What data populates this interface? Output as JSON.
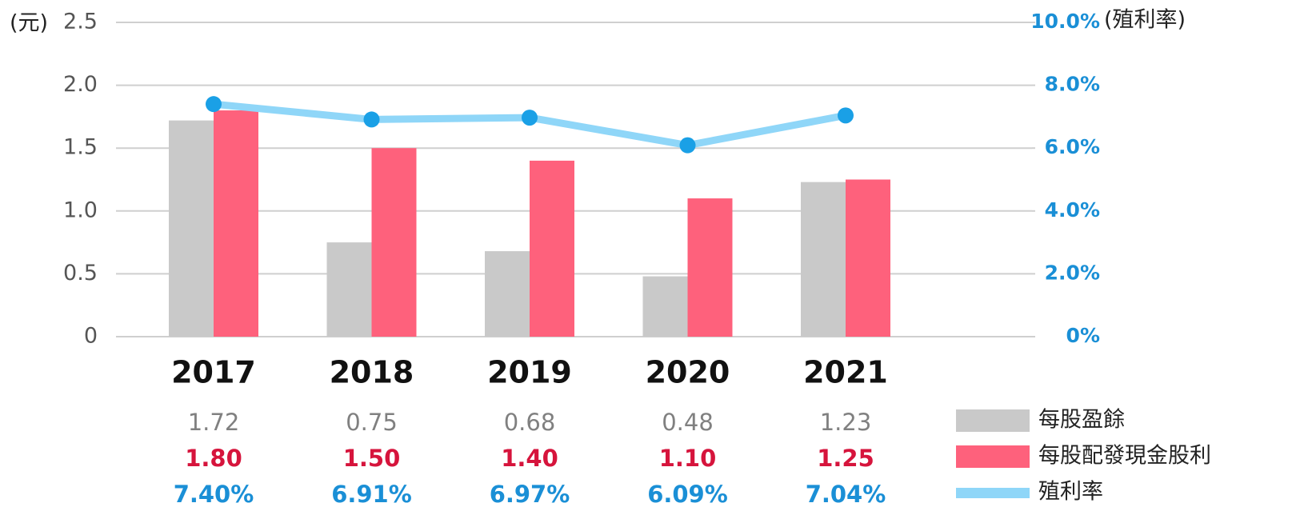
{
  "chart_data": {
    "type": "bar_line",
    "y_label": "(元)",
    "y2_label": "(殖利率)",
    "categories": [
      "2017",
      "2018",
      "2019",
      "2020",
      "2021"
    ],
    "series": [
      {
        "name": "每股盈餘",
        "color": "#c9c9c9",
        "label_color": "#808080",
        "values": [
          1.72,
          0.75,
          0.68,
          0.48,
          1.23
        ],
        "value_labels": [
          "1.72",
          "0.75",
          "0.68",
          "0.48",
          "1.23"
        ]
      },
      {
        "name": "每股配發現金股利",
        "color": "#fe617c",
        "label_color": "#d6143c",
        "values": [
          1.8,
          1.5,
          1.4,
          1.1,
          1.25
        ],
        "value_labels": [
          "1.80",
          "1.50",
          "1.40",
          "1.10",
          "1.25"
        ]
      },
      {
        "name": "殖利率",
        "type": "line",
        "axis": "y2",
        "color": "#8fd6f8",
        "marker_color": "#1aa0e6",
        "label_color": "#1a8fd6",
        "values": [
          7.4,
          6.91,
          6.97,
          6.09,
          7.04
        ],
        "value_labels": [
          "7.40%",
          "6.91%",
          "6.97%",
          "6.09%",
          "7.04%"
        ]
      }
    ],
    "ylim": [
      0,
      2.5
    ],
    "yticks": [
      0,
      0.5,
      {
        "value": 1,
        "label": "1.0"
      },
      1.5,
      {
        "value": 2,
        "label": "2.0"
      },
      2.5
    ],
    "y2lim": [
      0,
      10
    ],
    "y2ticks": [
      {
        "value": 0,
        "label": "0%"
      },
      {
        "value": 2,
        "label": "2.0%"
      },
      {
        "value": 4,
        "label": "4.0%"
      },
      {
        "value": 6,
        "label": "6.0%"
      },
      {
        "value": 8,
        "label": "8.0%"
      },
      {
        "value": 10,
        "label": "10.0%"
      }
    ],
    "grid": true
  }
}
